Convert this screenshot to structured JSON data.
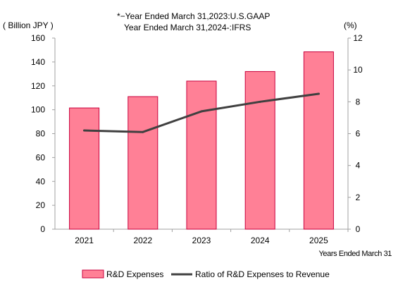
{
  "note_line1": "*−Year Ended  March 31,2023:U.S.GAAP",
  "note_line2": "Year Ended  March 31,2024-:IFRS",
  "chart_data": {
    "type": "bar",
    "categories": [
      "2021",
      "2022",
      "2023",
      "2024",
      "2025"
    ],
    "series": [
      {
        "name": "R&D Expenses",
        "type": "bar",
        "axis": "left",
        "values": [
          101.5,
          111,
          124,
          132,
          148.5
        ],
        "color": "#ff8096",
        "edge_color": "#c8003c"
      },
      {
        "name": "Ratio of R&D Expenses to Revenue",
        "type": "line",
        "axis": "right",
        "values": [
          6.2,
          6.1,
          7.4,
          8.0,
          8.5
        ],
        "color": "#404040"
      }
    ],
    "left_axis": {
      "label": "( Billion JPY )",
      "ticks": [
        "0",
        "20",
        "40",
        "60",
        "80",
        "100",
        "120",
        "140",
        "160"
      ],
      "range": [
        0,
        160
      ]
    },
    "right_axis": {
      "label": "(%)",
      "ticks": [
        "0",
        "2",
        "4",
        "6",
        "8",
        "10",
        "12"
      ],
      "range": [
        0,
        12
      ]
    },
    "xlabel": "Years Ended March 31",
    "grid": false,
    "legend_position": "bottom"
  }
}
